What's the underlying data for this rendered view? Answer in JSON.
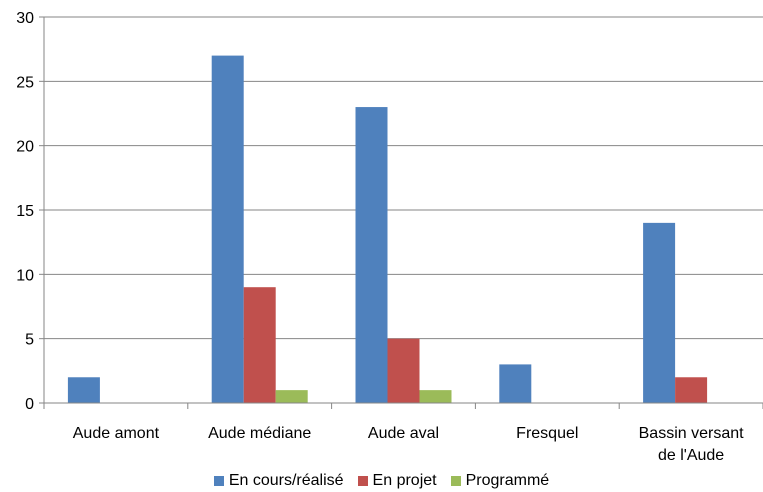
{
  "chart_data": {
    "type": "bar",
    "categories": [
      [
        "Aude amont"
      ],
      [
        "Aude médiane"
      ],
      [
        "Aude aval"
      ],
      [
        "Fresquel"
      ],
      [
        "Bassin versant",
        "de l'Aude"
      ]
    ],
    "series": [
      {
        "name": "En cours/réalisé",
        "color": "#4F81BD",
        "values": [
          2,
          27,
          23,
          3,
          14
        ]
      },
      {
        "name": "En projet",
        "color": "#C0504D",
        "values": [
          0,
          9,
          5,
          0,
          2
        ]
      },
      {
        "name": "Programmé",
        "color": "#9BBB59",
        "values": [
          0,
          1,
          1,
          0,
          0
        ]
      }
    ],
    "ylim": [
      0,
      30
    ],
    "yticks": [
      "0",
      "5",
      "10",
      "15",
      "20",
      "25",
      "30"
    ],
    "grid": true,
    "legend_position": "bottom"
  }
}
